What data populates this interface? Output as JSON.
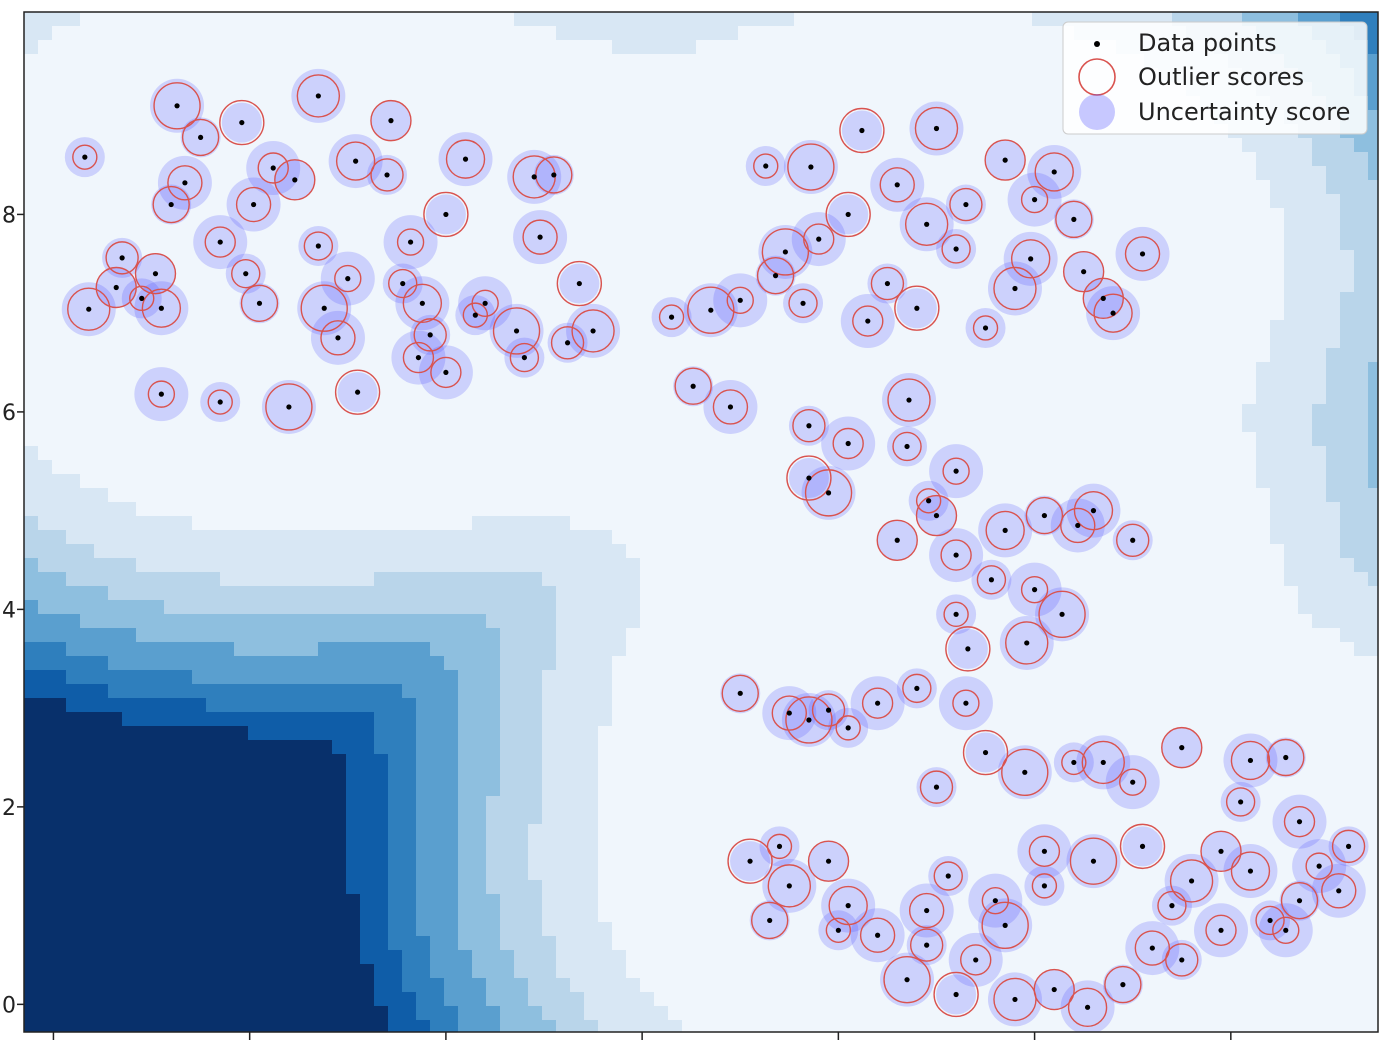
{
  "chart_data": {
    "type": "scatter",
    "title": "",
    "xlabel": "",
    "ylabel": "",
    "xlim": [
      -0.15,
      6.75
    ],
    "ylim": [
      -0.28,
      10.05
    ],
    "y_ticks": [
      0,
      2,
      4,
      6,
      8
    ],
    "y_tick_labels": [
      "0",
      "2",
      "4",
      "6",
      "8"
    ],
    "x_tick_values": [
      0,
      1,
      2,
      3,
      4,
      5,
      6
    ],
    "x_tick_labels": [
      "",
      "",
      "",
      "",
      "",
      "",
      ""
    ],
    "grid": false,
    "legend_position": "top-right",
    "legend": [
      {
        "key": "points",
        "label": "Data points"
      },
      {
        "key": "outlier",
        "label": "Outlier scores"
      },
      {
        "key": "uncertainty",
        "label": "Uncertainty score"
      }
    ],
    "colors": {
      "point": "#000000",
      "outlier_ring": "#d9534f",
      "uncertainty_fill": "#4d4dff",
      "contour": [
        "#f0f6fc",
        "#d8e7f4",
        "#b9d5ea",
        "#8ebfdf",
        "#5a9fcf",
        "#2f7fbd",
        "#0f5da8",
        "#08306b"
      ]
    },
    "clusters": [
      {
        "name": "top-left",
        "points": [
          [
            0.16,
            8.58
          ],
          [
            0.63,
            9.1
          ],
          [
            0.96,
            8.93
          ],
          [
            1.35,
            9.2
          ],
          [
            1.72,
            8.95
          ],
          [
            2.1,
            8.56
          ],
          [
            2.55,
            8.4
          ],
          [
            2.48,
            7.77
          ],
          [
            0.35,
            7.56
          ],
          [
            0.85,
            7.72
          ],
          [
            1.35,
            7.68
          ],
          [
            1.82,
            7.72
          ],
          [
            2.15,
            6.98
          ],
          [
            2.36,
            6.82
          ],
          [
            2.68,
            7.3
          ],
          [
            2.75,
            6.82
          ],
          [
            0.32,
            7.26
          ],
          [
            0.55,
            7.05
          ],
          [
            1.05,
            7.1
          ],
          [
            1.45,
            6.75
          ],
          [
            1.92,
            6.78
          ],
          [
            2.0,
            6.4
          ],
          [
            2.4,
            6.55
          ],
          [
            0.55,
            6.18
          ],
          [
            0.85,
            6.1
          ],
          [
            1.2,
            6.05
          ],
          [
            1.55,
            6.2
          ],
          [
            0.18,
            7.04
          ],
          [
            1.23,
            8.35
          ],
          [
            1.54,
            8.54
          ],
          [
            0.75,
            8.78
          ],
          [
            0.67,
            8.32
          ],
          [
            1.7,
            8.4
          ],
          [
            1.12,
            8.47
          ],
          [
            1.78,
            7.3
          ],
          [
            1.5,
            7.35
          ],
          [
            0.45,
            7.15
          ],
          [
            1.38,
            7.05
          ],
          [
            2.0,
            8.0
          ],
          [
            2.45,
            8.38
          ],
          [
            0.52,
            7.4
          ],
          [
            1.88,
            7.1
          ],
          [
            0.6,
            8.1
          ],
          [
            1.02,
            8.1
          ],
          [
            2.62,
            6.7
          ],
          [
            1.86,
            6.55
          ],
          [
            0.98,
            7.4
          ],
          [
            2.2,
            7.1
          ]
        ]
      },
      {
        "name": "top-right",
        "points": [
          [
            3.63,
            8.49
          ],
          [
            3.86,
            8.48
          ],
          [
            4.12,
            8.85
          ],
          [
            4.5,
            8.87
          ],
          [
            4.85,
            8.55
          ],
          [
            5.1,
            8.43
          ],
          [
            5.2,
            7.95
          ],
          [
            5.55,
            7.6
          ],
          [
            4.25,
            7.3
          ],
          [
            4.15,
            6.92
          ],
          [
            3.82,
            7.1
          ],
          [
            3.5,
            7.13
          ],
          [
            3.15,
            6.96
          ],
          [
            3.35,
            7.03
          ],
          [
            4.4,
            7.05
          ],
          [
            4.9,
            7.25
          ],
          [
            5.35,
            7.15
          ],
          [
            4.98,
            7.55
          ],
          [
            3.68,
            7.38
          ],
          [
            4.3,
            8.3
          ],
          [
            4.65,
            8.1
          ],
          [
            3.9,
            7.75
          ],
          [
            4.6,
            7.65
          ],
          [
            5.0,
            8.15
          ],
          [
            4.75,
            6.85
          ],
          [
            3.73,
            7.62
          ],
          [
            4.05,
            8.0
          ],
          [
            4.45,
            7.9
          ],
          [
            5.25,
            7.42
          ],
          [
            5.4,
            7.0
          ]
        ]
      },
      {
        "name": "middle-right",
        "points": [
          [
            3.26,
            6.26
          ],
          [
            3.45,
            6.05
          ],
          [
            3.85,
            5.86
          ],
          [
            4.05,
            5.68
          ],
          [
            4.35,
            5.65
          ],
          [
            4.6,
            5.4
          ],
          [
            4.46,
            5.1
          ],
          [
            3.95,
            5.18
          ],
          [
            3.85,
            5.33
          ],
          [
            4.36,
            6.12
          ],
          [
            4.5,
            4.95
          ],
          [
            4.85,
            4.8
          ],
          [
            5.05,
            4.95
          ],
          [
            5.22,
            4.85
          ],
          [
            5.5,
            4.7
          ],
          [
            4.6,
            4.55
          ],
          [
            4.78,
            4.3
          ],
          [
            5.0,
            4.2
          ],
          [
            4.6,
            3.95
          ],
          [
            5.14,
            3.95
          ],
          [
            4.66,
            3.6
          ],
          [
            4.96,
            3.66
          ],
          [
            4.3,
            4.7
          ],
          [
            5.3,
            5.0
          ]
        ]
      },
      {
        "name": "small-middle",
        "points": [
          [
            3.5,
            3.15
          ],
          [
            3.75,
            2.95
          ],
          [
            3.95,
            2.98
          ],
          [
            4.2,
            3.05
          ],
          [
            4.4,
            3.2
          ],
          [
            4.65,
            3.05
          ],
          [
            4.05,
            2.8
          ],
          [
            3.85,
            2.88
          ]
        ]
      },
      {
        "name": "bottom-right",
        "points": [
          [
            3.55,
            1.45
          ],
          [
            3.75,
            1.2
          ],
          [
            3.95,
            1.45
          ],
          [
            4.05,
            1.0
          ],
          [
            3.65,
            0.85
          ],
          [
            4.2,
            0.7
          ],
          [
            4.45,
            0.6
          ],
          [
            4.7,
            0.45
          ],
          [
            4.56,
            1.3
          ],
          [
            4.8,
            1.05
          ],
          [
            5.05,
            1.2
          ],
          [
            5.3,
            1.45
          ],
          [
            5.55,
            1.6
          ],
          [
            5.8,
            1.25
          ],
          [
            5.95,
            1.55
          ],
          [
            6.1,
            1.35
          ],
          [
            6.35,
            1.05
          ],
          [
            6.55,
            1.15
          ],
          [
            6.6,
            1.6
          ],
          [
            6.35,
            1.85
          ],
          [
            6.05,
            2.05
          ],
          [
            5.5,
            2.25
          ],
          [
            5.2,
            2.45
          ],
          [
            4.95,
            2.35
          ],
          [
            4.75,
            2.55
          ],
          [
            5.35,
            2.45
          ],
          [
            5.75,
            2.6
          ],
          [
            6.1,
            2.47
          ],
          [
            6.28,
            2.5
          ],
          [
            5.6,
            0.57
          ],
          [
            5.75,
            0.45
          ],
          [
            5.95,
            0.75
          ],
          [
            6.2,
            0.85
          ],
          [
            6.28,
            0.75
          ],
          [
            4.0,
            0.75
          ],
          [
            4.35,
            0.25
          ],
          [
            4.6,
            0.1
          ],
          [
            4.9,
            0.05
          ],
          [
            5.1,
            0.15
          ],
          [
            5.27,
            -0.03
          ],
          [
            5.45,
            0.2
          ],
          [
            4.45,
            0.95
          ],
          [
            4.5,
            2.2
          ],
          [
            5.05,
            1.55
          ],
          [
            5.7,
            1.0
          ],
          [
            6.45,
            1.4
          ],
          [
            3.7,
            1.6
          ],
          [
            4.85,
            0.8
          ]
        ]
      }
    ]
  }
}
